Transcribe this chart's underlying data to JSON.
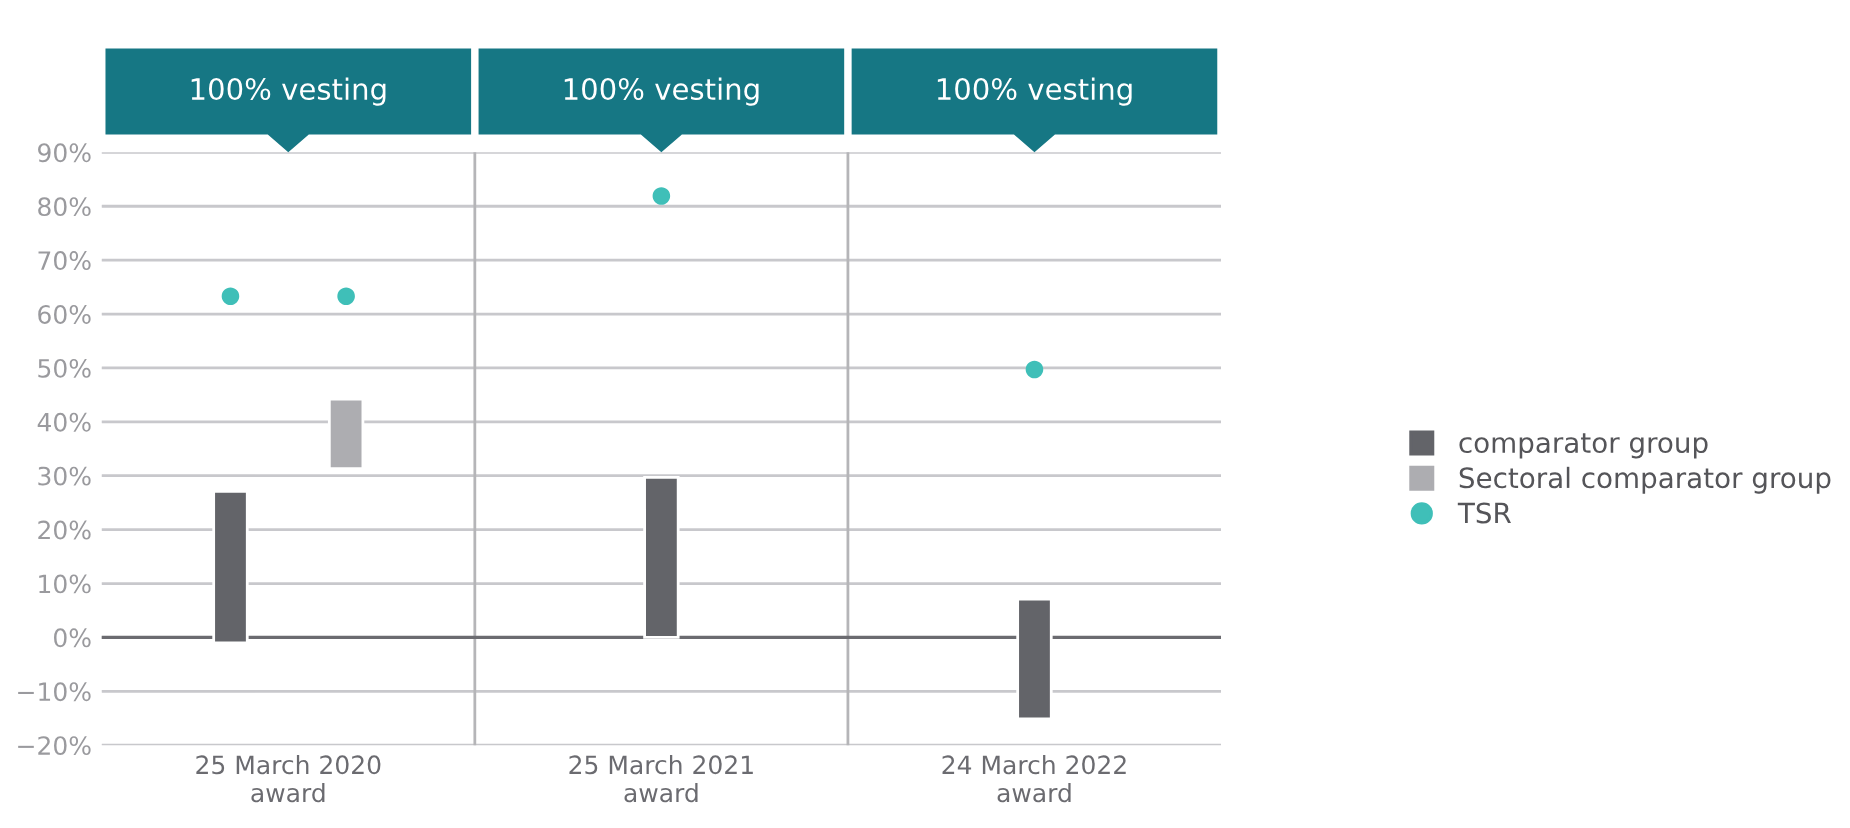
{
  "chart_data": {
    "type": "bar",
    "categories": [
      "25 March 2020\naward",
      "25 March 2021\naward",
      "24 March 2022\naward"
    ],
    "series": [
      {
        "name": "comparator group",
        "color": "#636469",
        "values": [
          28.1,
          29.7,
          22.2
        ],
        "base": [
          -1.0,
          0,
          -15.1
        ]
      },
      {
        "name": "Sectoral comparator group",
        "color": "#adadb1",
        "values": [
          12.9,
          null,
          null
        ],
        "base": [
          31.3,
          null,
          null
        ]
      },
      {
        "name": "TSR",
        "type": "scatter",
        "color": "#3fbfb8",
        "values": [
          63.3,
          63.3,
          81.9,
          49.7
        ],
        "x": [
          "25 March 2020\naward",
          "25 March 2020\naward",
          "25 March 2021\naward",
          "24 March 2022\naward"
        ],
        "marker": "circle"
      }
    ],
    "annotations": [
      "100% vesting",
      "100% vesting",
      "100% vesting"
    ],
    "ylim": [
      -20,
      90
    ],
    "yticks": [
      {
        "value": -20,
        "label": "−20%"
      },
      {
        "value": -10,
        "label": "−10%"
      },
      {
        "value": 0,
        "label": "0%"
      },
      {
        "value": 10,
        "label": "10%"
      },
      {
        "value": 20,
        "label": "20%"
      },
      {
        "value": 30,
        "label": "30%"
      },
      {
        "value": 40,
        "label": "40%"
      },
      {
        "value": 50,
        "label": "50%"
      },
      {
        "value": 60,
        "label": "60%"
      },
      {
        "value": 70,
        "label": "70%"
      },
      {
        "value": 80,
        "label": "80%"
      },
      {
        "value": 90,
        "label": "90%"
      }
    ],
    "grid": "y",
    "legend": "right"
  }
}
